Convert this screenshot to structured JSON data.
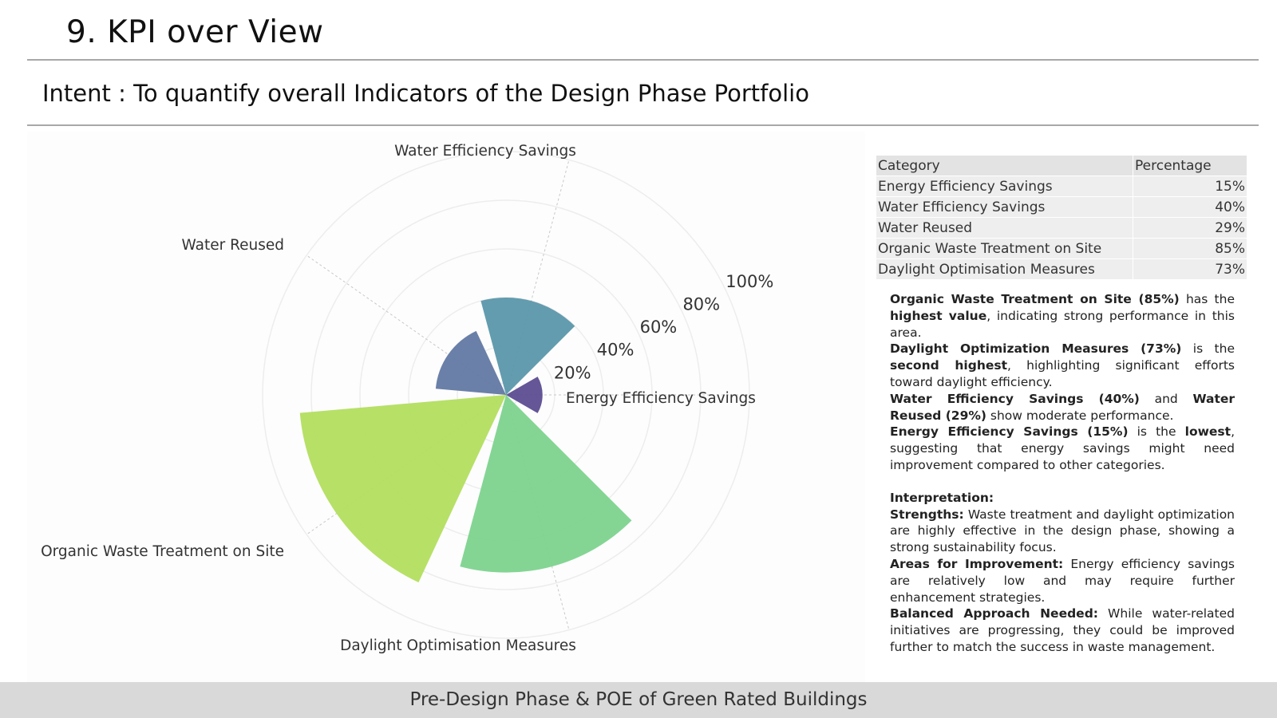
{
  "slide": {
    "title": "9. KPI over View",
    "subtitle": "Intent : To quantify overall Indicators of the Design Phase Portfolio",
    "footer": "Pre-Design Phase & POE of Green Rated Buildings"
  },
  "table": {
    "headers": [
      "Category",
      "Percentage"
    ],
    "rows": [
      [
        "Energy Efficiency Savings",
        "15%"
      ],
      [
        "Water Efficiency Savings",
        "40%"
      ],
      [
        "Water Reused",
        "29%"
      ],
      [
        "Organic Waste Treatment on Site",
        "85%"
      ],
      [
        "Daylight Optimisation Measures",
        "73%"
      ]
    ]
  },
  "notes": {
    "p1": {
      "b1": "Organic Waste Treatment on Site (85%)",
      "t1": " has the ",
      "b2": "highest value",
      "t2": ", indicating strong performance in this area."
    },
    "p2": {
      "b1": "Daylight Optimization Measures (73%)",
      "t1": " is the ",
      "b2": "second highest",
      "t2": ", highlighting significant efforts toward daylight efficiency."
    },
    "p3": {
      "b1": "Water Efficiency Savings (40%)",
      "t1": " and ",
      "b2": "Water Reused (29%)",
      "t2": " show moderate performance."
    },
    "p4": {
      "b1": "Energy Efficiency Savings (15%)",
      "t1": " is the ",
      "b2": "lowest",
      "t2": ", suggesting that energy savings might need improvement compared to other categories."
    },
    "interpretation_heading": "Interpretation:",
    "i1": {
      "b": "Strengths:",
      "t": " Waste treatment and daylight optimization are highly effective in the design phase, showing a strong sustainability focus."
    },
    "i2": {
      "b": "Areas for Improvement:",
      "t": " Energy efficiency savings are relatively low and may require further enhancement strategies."
    },
    "i3": {
      "b": "Balanced Approach Needed:",
      "t": " While water-related initiatives are progressing, they could be improved further to match the success in waste management."
    }
  },
  "chart_data": {
    "type": "polar-bar",
    "categories": [
      "Energy Efficiency Savings",
      "Water Efficiency Savings",
      "Water Reused",
      "Organic Waste Treatment on Site",
      "Daylight Optimisation Measures"
    ],
    "values": [
      15,
      40,
      29,
      85,
      73
    ],
    "colors": [
      "#5c4d91",
      "#5b97ab",
      "#6279a3",
      "#b3de5f",
      "#7dd38e"
    ],
    "radial_ticks": [
      "20%",
      "40%",
      "60%",
      "80%",
      "100%"
    ],
    "rlim": [
      0,
      100
    ],
    "grid": true
  }
}
